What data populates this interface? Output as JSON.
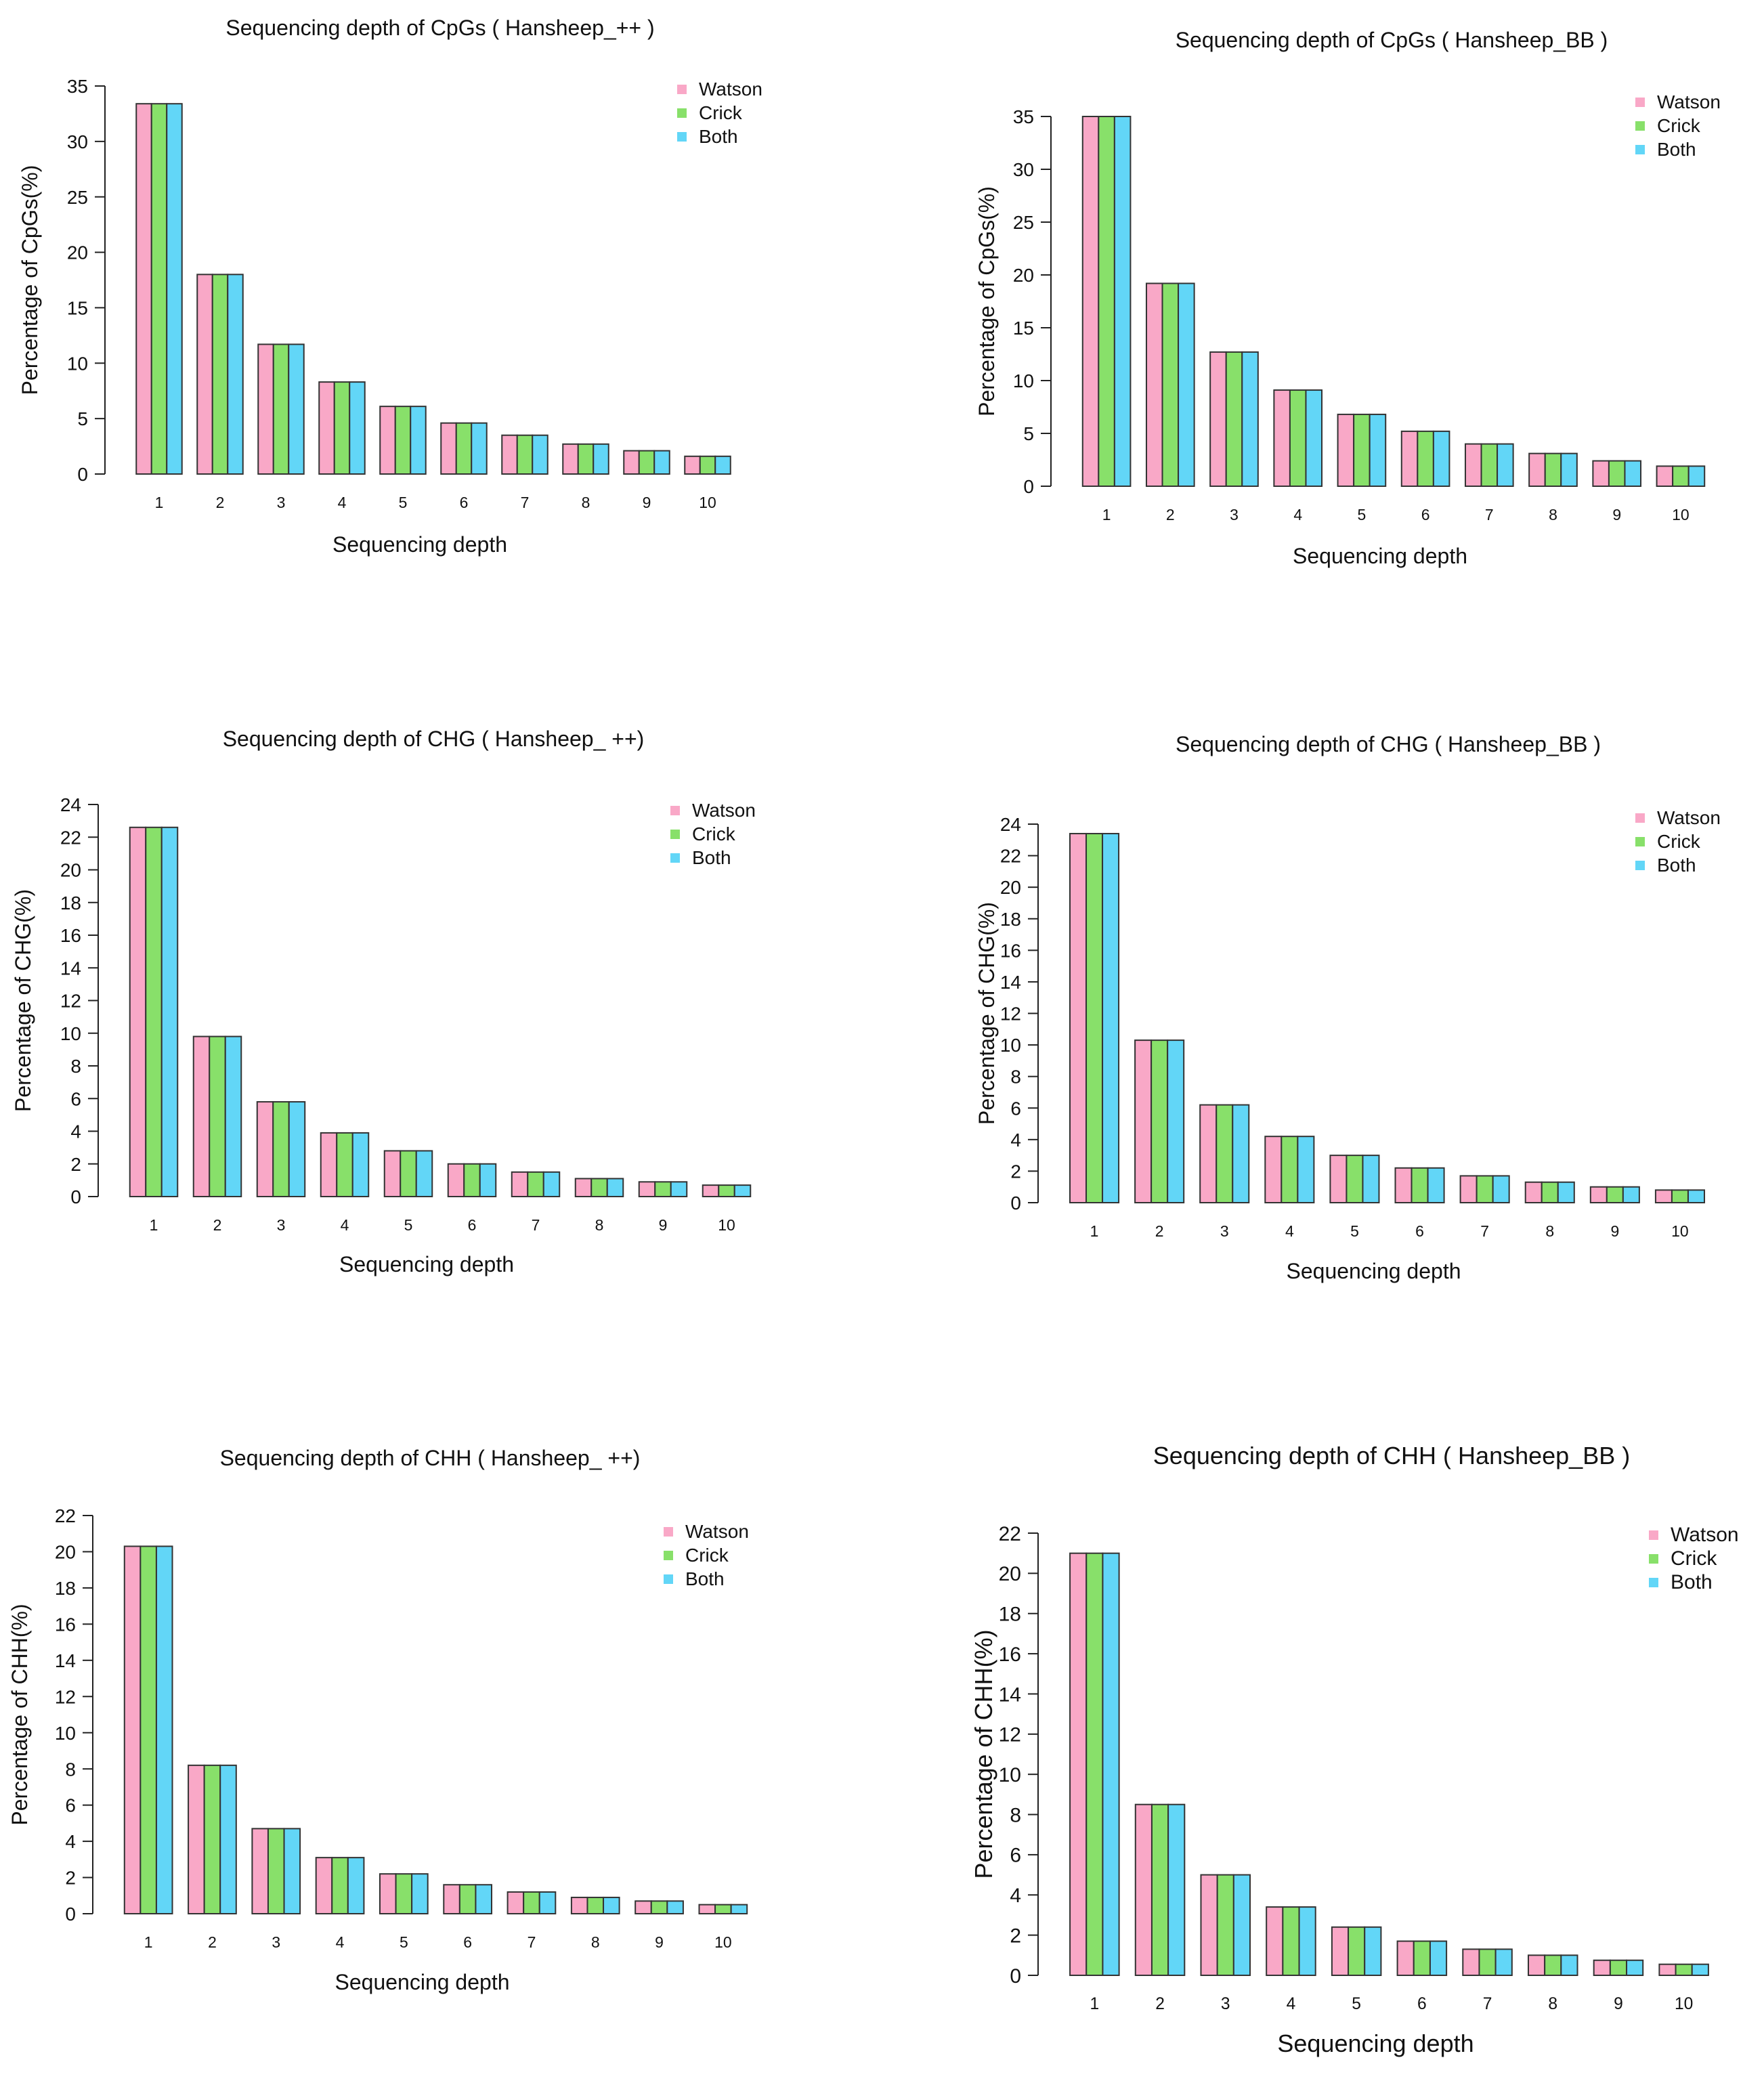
{
  "colors": {
    "watson": "#f9a8c7",
    "crick": "#88e06a",
    "both": "#62d6f7",
    "outline": "#333333"
  },
  "chart_data": [
    {
      "type": "bar",
      "title": "Sequencing depth of CpGs ( Hansheep_++ )",
      "xlabel": "Sequencing depth",
      "ylabel": "Percentage of CpGs(%)",
      "categories": [
        "1",
        "2",
        "3",
        "4",
        "5",
        "6",
        "7",
        "8",
        "9",
        "10"
      ],
      "ylim": [
        0,
        35
      ],
      "yticks": [
        0,
        5,
        10,
        15,
        20,
        25,
        30,
        35
      ],
      "legend": [
        "Watson",
        "Crick",
        "Both"
      ],
      "legend_position": "top-right",
      "series": [
        {
          "name": "Watson",
          "values": [
            33.4,
            18.0,
            11.7,
            8.3,
            6.1,
            4.6,
            3.5,
            2.7,
            2.1,
            1.6
          ]
        },
        {
          "name": "Crick",
          "values": [
            33.4,
            18.0,
            11.7,
            8.3,
            6.1,
            4.6,
            3.5,
            2.7,
            2.1,
            1.6
          ]
        },
        {
          "name": "Both",
          "values": [
            33.4,
            18.0,
            11.7,
            8.3,
            6.1,
            4.6,
            3.5,
            2.7,
            2.1,
            1.6
          ]
        }
      ]
    },
    {
      "type": "bar",
      "title": "Sequencing depth of CpGs ( Hansheep_BB )",
      "xlabel": "Sequencing depth",
      "ylabel": "Percentage of CpGs(%)",
      "categories": [
        "1",
        "2",
        "3",
        "4",
        "5",
        "6",
        "7",
        "8",
        "9",
        "10"
      ],
      "ylim": [
        0,
        35
      ],
      "yticks": [
        0,
        5,
        10,
        15,
        20,
        25,
        30,
        35
      ],
      "legend": [
        "Watson",
        "Crick",
        "Both"
      ],
      "legend_position": "top-right",
      "series": [
        {
          "name": "Watson",
          "values": [
            35.0,
            19.2,
            12.7,
            9.1,
            6.8,
            5.2,
            4.0,
            3.1,
            2.4,
            1.9
          ]
        },
        {
          "name": "Crick",
          "values": [
            35.0,
            19.2,
            12.7,
            9.1,
            6.8,
            5.2,
            4.0,
            3.1,
            2.4,
            1.9
          ]
        },
        {
          "name": "Both",
          "values": [
            35.0,
            19.2,
            12.7,
            9.1,
            6.8,
            5.2,
            4.0,
            3.1,
            2.4,
            1.9
          ]
        }
      ]
    },
    {
      "type": "bar",
      "title": "Sequencing depth of CHG ( Hansheep_ ++)",
      "xlabel": "Sequencing depth",
      "ylabel": "Percentage of CHG(%)",
      "categories": [
        "1",
        "2",
        "3",
        "4",
        "5",
        "6",
        "7",
        "8",
        "9",
        "10"
      ],
      "ylim": [
        0,
        24
      ],
      "yticks": [
        0,
        2,
        4,
        6,
        8,
        10,
        12,
        14,
        16,
        18,
        20,
        22,
        24
      ],
      "legend": [
        "Watson",
        "Crick",
        "Both"
      ],
      "legend_position": "top-right",
      "series": [
        {
          "name": "Watson",
          "values": [
            22.6,
            9.8,
            5.8,
            3.9,
            2.8,
            2.0,
            1.5,
            1.1,
            0.9,
            0.7
          ]
        },
        {
          "name": "Crick",
          "values": [
            22.6,
            9.8,
            5.8,
            3.9,
            2.8,
            2.0,
            1.5,
            1.1,
            0.9,
            0.7
          ]
        },
        {
          "name": "Both",
          "values": [
            22.6,
            9.8,
            5.8,
            3.9,
            2.8,
            2.0,
            1.5,
            1.1,
            0.9,
            0.7
          ]
        }
      ]
    },
    {
      "type": "bar",
      "title": "Sequencing depth of CHG ( Hansheep_BB )",
      "xlabel": "Sequencing depth",
      "ylabel": "Percentage of CHG(%)",
      "categories": [
        "1",
        "2",
        "3",
        "4",
        "5",
        "6",
        "7",
        "8",
        "9",
        "10"
      ],
      "ylim": [
        0,
        24
      ],
      "yticks": [
        0,
        2,
        4,
        6,
        8,
        10,
        12,
        14,
        16,
        18,
        20,
        22,
        24
      ],
      "legend": [
        "Watson",
        "Crick",
        "Both"
      ],
      "legend_position": "top-right",
      "series": [
        {
          "name": "Watson",
          "values": [
            23.4,
            10.3,
            6.2,
            4.2,
            3.0,
            2.2,
            1.7,
            1.3,
            1.0,
            0.8
          ]
        },
        {
          "name": "Crick",
          "values": [
            23.4,
            10.3,
            6.2,
            4.2,
            3.0,
            2.2,
            1.7,
            1.3,
            1.0,
            0.8
          ]
        },
        {
          "name": "Both",
          "values": [
            23.4,
            10.3,
            6.2,
            4.2,
            3.0,
            2.2,
            1.7,
            1.3,
            1.0,
            0.8
          ]
        }
      ]
    },
    {
      "type": "bar",
      "title": "Sequencing depth of CHH ( Hansheep_ ++)",
      "xlabel": "Sequencing depth",
      "ylabel": "Percentage of CHH(%)",
      "categories": [
        "1",
        "2",
        "3",
        "4",
        "5",
        "6",
        "7",
        "8",
        "9",
        "10"
      ],
      "ylim": [
        0,
        22
      ],
      "yticks": [
        0,
        2,
        4,
        6,
        8,
        10,
        12,
        14,
        16,
        18,
        20,
        22
      ],
      "legend": [
        "Watson",
        "Crick",
        "Both"
      ],
      "legend_position": "top-right",
      "series": [
        {
          "name": "Watson",
          "values": [
            20.3,
            8.2,
            4.7,
            3.1,
            2.2,
            1.6,
            1.2,
            0.9,
            0.7,
            0.5
          ]
        },
        {
          "name": "Crick",
          "values": [
            20.3,
            8.2,
            4.7,
            3.1,
            2.2,
            1.6,
            1.2,
            0.9,
            0.7,
            0.5
          ]
        },
        {
          "name": "Both",
          "values": [
            20.3,
            8.2,
            4.7,
            3.1,
            2.2,
            1.6,
            1.2,
            0.9,
            0.7,
            0.5
          ]
        }
      ]
    },
    {
      "type": "bar",
      "title": "Sequencing depth of CHH ( Hansheep_BB )",
      "xlabel": "Sequencing depth",
      "ylabel": "Percentage of CHH(%)",
      "categories": [
        "1",
        "2",
        "3",
        "4",
        "5",
        "6",
        "7",
        "8",
        "9",
        "10"
      ],
      "ylim": [
        0,
        22
      ],
      "yticks": [
        0,
        2,
        4,
        6,
        8,
        10,
        12,
        14,
        16,
        18,
        20,
        22
      ],
      "legend": [
        "Watson",
        "Crick",
        "Both"
      ],
      "legend_position": "top-right",
      "series": [
        {
          "name": "Watson",
          "values": [
            21.0,
            8.5,
            5.0,
            3.4,
            2.4,
            1.7,
            1.3,
            1.0,
            0.75,
            0.55
          ]
        },
        {
          "name": "Crick",
          "values": [
            21.0,
            8.5,
            5.0,
            3.4,
            2.4,
            1.7,
            1.3,
            1.0,
            0.75,
            0.55
          ]
        },
        {
          "name": "Both",
          "values": [
            21.0,
            8.5,
            5.0,
            3.4,
            2.4,
            1.7,
            1.3,
            1.0,
            0.75,
            0.55
          ]
        }
      ]
    }
  ]
}
